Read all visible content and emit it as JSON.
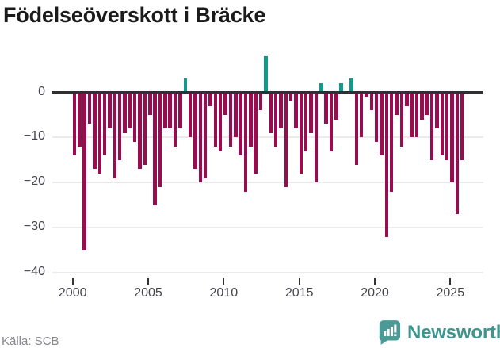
{
  "title": "Födelseöverskott i Bräcke",
  "source": {
    "label": "Källa: SCB"
  },
  "branding": {
    "name": "Newsworthy",
    "icon": "newsworthy-bar-chart-bubble-icon"
  },
  "colors": {
    "negative_bar": "#970d4f",
    "positive_bar": "#14998c",
    "zero_line": "#2f2f35",
    "gridline": "#ebebeb",
    "axis_text": "#45454c",
    "title_text": "#1b1b1b",
    "source_text": "#87878d",
    "brand_teal": "#3d958e"
  },
  "chart_data": {
    "type": "bar",
    "title": "Födelseöverskott i Bräcke",
    "xlabel": "",
    "ylabel": "",
    "start_year": 2000,
    "periods_per_year": 3,
    "ylim": [
      -40,
      9
    ],
    "grid": "horizontal",
    "legend": "none",
    "x_tick_labels": [
      "2000",
      "2005",
      "2010",
      "2015",
      "2020",
      "2025"
    ],
    "y_ticks": [
      0,
      -10,
      -20,
      -30,
      -40
    ],
    "y_tick_labels": [
      "0",
      "−10",
      "−20",
      "−30",
      "−40"
    ],
    "values": [
      -14,
      -12,
      -35,
      -7,
      -17,
      -18,
      -14,
      -8,
      -19,
      -15,
      -9,
      -8,
      -11,
      -17,
      -16,
      -5,
      -25,
      -21,
      -8,
      -8,
      -12,
      -8,
      3,
      -10,
      -17,
      -20,
      -19,
      -3,
      -12,
      -13,
      -5,
      -12,
      -10,
      -14,
      -22,
      -12,
      -18,
      -4,
      8,
      -9,
      -12,
      -8,
      -21,
      -2,
      -8,
      -18,
      -13,
      -9,
      -20,
      2,
      -7,
      -13,
      -6,
      2,
      0,
      3,
      -16,
      -10,
      -1,
      -4,
      -11,
      -14,
      -32,
      -22,
      -5,
      -12,
      -3,
      -10,
      -10,
      -6,
      -5,
      -15,
      -8,
      -14,
      -15,
      -20,
      -27,
      -15
    ]
  }
}
